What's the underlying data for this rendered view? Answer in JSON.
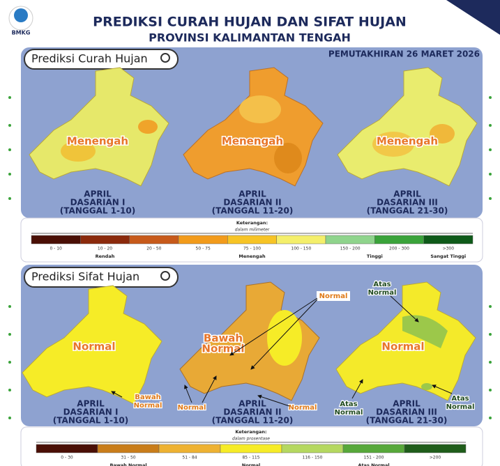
{
  "header": {
    "logo": "BMKG",
    "title": "PREDIKSI CURAH HUJAN DAN SIFAT HUJAN",
    "subtitle": "PROVINSI KALIMANTAN TENGAH",
    "update": "PEMUTAKHIRAN 26 MARET 2026"
  },
  "sections": [
    {
      "label": "Prediksi Curah Hujan",
      "maps": [
        {
          "label": "Menengah",
          "caption": [
            "APRIL",
            "DASARIAN I",
            "(TANGGAL 1-10)"
          ]
        },
        {
          "label": "Menengah",
          "caption": [
            "APRIL",
            "DASARIAN II",
            "(TANGGAL 11-20)"
          ]
        },
        {
          "label": "Menengah",
          "caption": [
            "APRIL",
            "DASARIAN III",
            "(TANGGAL 21-30)"
          ]
        }
      ],
      "legend": {
        "title": "Keterangan:",
        "unit": "dalam milimeter",
        "items": [
          "0 - 10",
          "10 - 20",
          "20 - 50",
          "50 - 75",
          "75 - 100",
          "100 - 150",
          "150 - 200",
          "200 - 300",
          ">300"
        ],
        "groups": [
          "Rendah",
          "Menengah",
          "Tinggi",
          "Sangat Tinggi"
        ]
      }
    },
    {
      "label": "Prediksi Sifat Hujan",
      "maps": [
        {
          "label": "Normal",
          "caption": [
            "APRIL",
            "DASARIAN I",
            "(TANGGAL 1-10)"
          ],
          "annotations": [
            [
              "Bawah",
              "Normal"
            ]
          ]
        },
        {
          "label": [
            "Bawah",
            "Normal"
          ],
          "caption": [
            "APRIL",
            "DASARIAN II",
            "(TANGGAL 11-20)"
          ],
          "annotations": [
            [
              "Normal"
            ],
            [
              "Normal"
            ],
            [
              "Normal"
            ]
          ]
        },
        {
          "label": "Normal",
          "caption": [
            "APRIL",
            "DASARIAN III",
            "(TANGGAL 21-30)"
          ],
          "annotations": [
            [
              "Atas",
              "Normal"
            ],
            [
              "Atas",
              "Normal"
            ],
            [
              "Atas",
              "Normal"
            ]
          ]
        }
      ],
      "legend": {
        "title": "Keterangan:",
        "unit": "dalam prosentase",
        "items": [
          "0 - 30",
          "31 - 50",
          "51 - 84",
          "85 - 115",
          "116 - 150",
          "151 - 200",
          ">200"
        ],
        "groups": [
          "Bawah Normal",
          "Normal",
          "Atas Normal"
        ]
      }
    }
  ]
}
